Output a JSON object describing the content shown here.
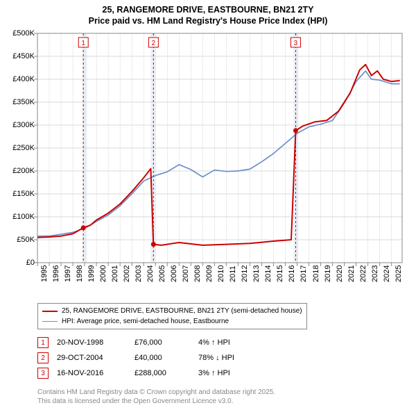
{
  "title": {
    "line1": "25, RANGEMORE DRIVE, EASTBOURNE, BN21 2TY",
    "line2": "Price paid vs. HM Land Registry's House Price Index (HPI)"
  },
  "chart": {
    "type": "line",
    "background_color": "#ffffff",
    "grid_color": "#d9d9d9",
    "axis_color": "#888888",
    "x_range": [
      1995,
      2025.9
    ],
    "y_range": [
      0,
      500000
    ],
    "y_ticks": [
      0,
      50000,
      100000,
      150000,
      200000,
      250000,
      300000,
      350000,
      400000,
      450000,
      500000
    ],
    "y_tick_labels": [
      "£0",
      "£50K",
      "£100K",
      "£150K",
      "£200K",
      "£250K",
      "£300K",
      "£350K",
      "£400K",
      "£450K",
      "£500K"
    ],
    "x_ticks": [
      1995,
      1996,
      1997,
      1998,
      1999,
      2000,
      2001,
      2002,
      2003,
      2004,
      2005,
      2006,
      2007,
      2008,
      2009,
      2010,
      2011,
      2012,
      2013,
      2014,
      2015,
      2016,
      2017,
      2018,
      2019,
      2020,
      2021,
      2022,
      2023,
      2024,
      2025
    ],
    "x_tick_labels": [
      "1995",
      "1996",
      "1997",
      "1998",
      "1999",
      "2000",
      "2001",
      "2002",
      "2003",
      "2004",
      "2005",
      "2006",
      "2007",
      "2008",
      "2009",
      "2010",
      "2011",
      "2012",
      "2013",
      "2014",
      "2015",
      "2016",
      "2017",
      "2018",
      "2019",
      "2020",
      "2021",
      "2022",
      "2023",
      "2024",
      "2025"
    ],
    "highlight_bands": [
      {
        "x_start": 1998.8,
        "x_end": 1999.2,
        "color": "#eaf0f7"
      },
      {
        "x_start": 2004.6,
        "x_end": 2005.0,
        "color": "#eaf0f7"
      },
      {
        "x_start": 2016.7,
        "x_end": 2017.1,
        "color": "#eaf0f7"
      }
    ],
    "sale_markers": [
      {
        "label": "1",
        "x": 1998.89,
        "y": 76000,
        "color": "#cc0000"
      },
      {
        "label": "2",
        "x": 2004.83,
        "y": 40000,
        "color": "#cc0000"
      },
      {
        "label": "3",
        "x": 2016.88,
        "y": 288000,
        "color": "#cc0000"
      }
    ],
    "series": [
      {
        "name": "price_paid",
        "label": "25, RANGEMORE DRIVE, EASTBOURNE, BN21 2TY (semi-detached house)",
        "color": "#cc0000",
        "line_width": 2,
        "points": [
          [
            1995.0,
            55000
          ],
          [
            1996.0,
            56000
          ],
          [
            1997.0,
            58000
          ],
          [
            1998.0,
            63000
          ],
          [
            1998.89,
            76000
          ],
          [
            1999.5,
            82000
          ],
          [
            2000.0,
            93000
          ],
          [
            2001.0,
            108000
          ],
          [
            2002.0,
            128000
          ],
          [
            2003.0,
            155000
          ],
          [
            2004.0,
            185000
          ],
          [
            2004.6,
            205000
          ],
          [
            2004.83,
            40000
          ],
          [
            2005.5,
            38000
          ],
          [
            2007.0,
            44000
          ],
          [
            2009.0,
            38000
          ],
          [
            2011.0,
            40000
          ],
          [
            2013.0,
            42000
          ],
          [
            2015.0,
            47000
          ],
          [
            2016.5,
            50000
          ],
          [
            2016.88,
            288000
          ],
          [
            2017.5,
            298000
          ],
          [
            2018.5,
            307000
          ],
          [
            2019.5,
            310000
          ],
          [
            2020.5,
            330000
          ],
          [
            2021.5,
            370000
          ],
          [
            2022.3,
            420000
          ],
          [
            2022.8,
            432000
          ],
          [
            2023.3,
            408000
          ],
          [
            2023.8,
            418000
          ],
          [
            2024.3,
            400000
          ],
          [
            2025.0,
            395000
          ],
          [
            2025.7,
            397000
          ]
        ]
      },
      {
        "name": "hpi",
        "label": "HPI: Average price, semi-detached house, Eastbourne",
        "color": "#6b8fc9",
        "line_width": 1.7,
        "points": [
          [
            1995.0,
            58000
          ],
          [
            1996.0,
            58000
          ],
          [
            1997.0,
            62000
          ],
          [
            1998.0,
            66000
          ],
          [
            1999.0,
            75000
          ],
          [
            2000.0,
            90000
          ],
          [
            2001.0,
            104000
          ],
          [
            2002.0,
            124000
          ],
          [
            2003.0,
            150000
          ],
          [
            2004.0,
            178000
          ],
          [
            2005.0,
            190000
          ],
          [
            2006.0,
            198000
          ],
          [
            2007.0,
            214000
          ],
          [
            2008.0,
            203000
          ],
          [
            2009.0,
            187000
          ],
          [
            2010.0,
            202000
          ],
          [
            2011.0,
            199000
          ],
          [
            2012.0,
            200000
          ],
          [
            2013.0,
            204000
          ],
          [
            2014.0,
            220000
          ],
          [
            2015.0,
            238000
          ],
          [
            2016.0,
            260000
          ],
          [
            2017.0,
            282000
          ],
          [
            2018.0,
            296000
          ],
          [
            2019.0,
            302000
          ],
          [
            2020.0,
            310000
          ],
          [
            2021.0,
            348000
          ],
          [
            2022.0,
            395000
          ],
          [
            2022.8,
            418000
          ],
          [
            2023.3,
            400000
          ],
          [
            2024.0,
            398000
          ],
          [
            2025.0,
            390000
          ],
          [
            2025.7,
            390000
          ]
        ]
      }
    ]
  },
  "legend": {
    "items": [
      {
        "color": "#cc0000",
        "width": 2,
        "label": "25, RANGEMORE DRIVE, EASTBOURNE, BN21 2TY (semi-detached house)"
      },
      {
        "color": "#6b8fc9",
        "width": 1.7,
        "label": "HPI: Average price, semi-detached house, Eastbourne"
      }
    ]
  },
  "sale_table": [
    {
      "num": "1",
      "date": "20-NOV-1998",
      "price": "£76,000",
      "pct": "4% ↑ HPI"
    },
    {
      "num": "2",
      "date": "29-OCT-2004",
      "price": "£40,000",
      "pct": "78% ↓ HPI"
    },
    {
      "num": "3",
      "date": "16-NOV-2016",
      "price": "£288,000",
      "pct": "3% ↑ HPI"
    }
  ],
  "attribution": {
    "line1": "Contains HM Land Registry data © Crown copyright and database right 2025.",
    "line2": "This data is licensed under the Open Government Licence v3.0."
  }
}
